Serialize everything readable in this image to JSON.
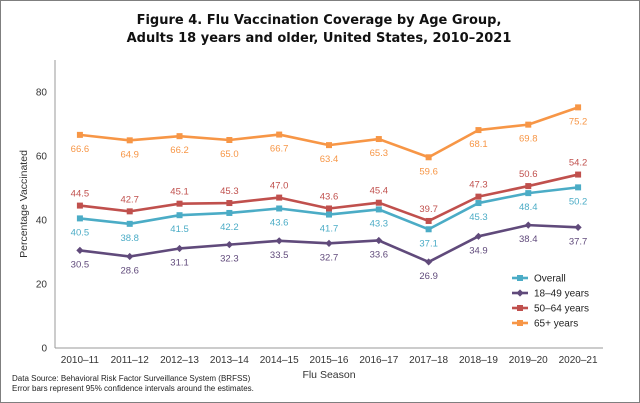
{
  "chart_data": {
    "type": "line",
    "title": "Figure 4. Flu Vaccination Coverage by Age Group,",
    "subtitle": "Adults 18 years and older, United States, 2010–2021",
    "xlabel": "Flu Season",
    "ylabel": "Percentage Vaccinated",
    "ylim": [
      0,
      90
    ],
    "yticks": [
      "0",
      "20",
      "40",
      "60",
      "80"
    ],
    "grid": false,
    "legend_position": "bottom-right",
    "categories": [
      "2010–11",
      "2011–12",
      "2012–13",
      "2013–14",
      "2014–15",
      "2015–16",
      "2016–17",
      "2017–18",
      "2018–19",
      "2019–20",
      "2020–21"
    ],
    "series": [
      {
        "name": "Overall",
        "color": "#4bacc6",
        "marker": "square",
        "values": [
          40.5,
          38.8,
          41.5,
          42.2,
          43.6,
          41.7,
          43.3,
          37.1,
          45.3,
          48.4,
          50.2
        ]
      },
      {
        "name": "18–49 years",
        "color": "#604a7b",
        "marker": "diamond",
        "values": [
          30.5,
          28.6,
          31.1,
          32.3,
          33.5,
          32.7,
          33.6,
          26.9,
          34.9,
          38.4,
          37.7
        ]
      },
      {
        "name": "50–64 years",
        "color": "#c0504d",
        "marker": "square",
        "values": [
          44.5,
          42.7,
          45.1,
          45.3,
          47.0,
          43.6,
          45.4,
          39.7,
          47.3,
          50.6,
          54.2
        ]
      },
      {
        "name": "65+ years",
        "color": "#f79646",
        "marker": "square",
        "values": [
          66.6,
          64.9,
          66.2,
          65.0,
          66.7,
          63.4,
          65.3,
          59.6,
          68.1,
          69.8,
          75.2
        ]
      }
    ],
    "data_labels": [
      {
        "series": "Overall",
        "labels": [
          "40.5",
          "38.8",
          "41.5",
          "42.2",
          "43.6",
          "41.7",
          "43.3",
          "37.1",
          "45.3",
          "48.4",
          "50.2"
        ]
      },
      {
        "series": "18–49 years",
        "labels": [
          "30.5",
          "28.6",
          "31.1",
          "32.3",
          "33.5",
          "32.7",
          "33.6",
          "26.9",
          "34.9",
          "38.4",
          "37.7"
        ]
      },
      {
        "series": "50–64 years",
        "labels": [
          "44.5",
          "42.7",
          "45.1",
          "45.3",
          "47.0",
          "43.6",
          "45.4",
          "39.7",
          "47.3",
          "50.6",
          "54.2"
        ]
      },
      {
        "series": "65+ years",
        "labels": [
          "66.6",
          "64.9",
          "66.2",
          "65.0",
          "66.7",
          "63.4",
          "65.3",
          "59.6",
          "68.1",
          "69.8",
          "75.2"
        ]
      }
    ]
  },
  "footer": {
    "source": "Data Source: Behavioral Risk Factor Surveillance System (BRFSS)",
    "note": "Error bars represent 95% confidence intervals around the estimates."
  }
}
